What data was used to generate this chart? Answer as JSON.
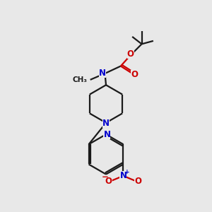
{
  "bg_color": "#e8e8e8",
  "bond_color": "#1a1a1a",
  "n_color": "#0000cc",
  "o_color": "#cc0000",
  "line_width": 1.6,
  "font_size": 8.5,
  "fig_width": 3.0,
  "fig_height": 3.0,
  "dpi": 100,
  "xlim": [
    0,
    10
  ],
  "ylim": [
    0,
    10
  ]
}
